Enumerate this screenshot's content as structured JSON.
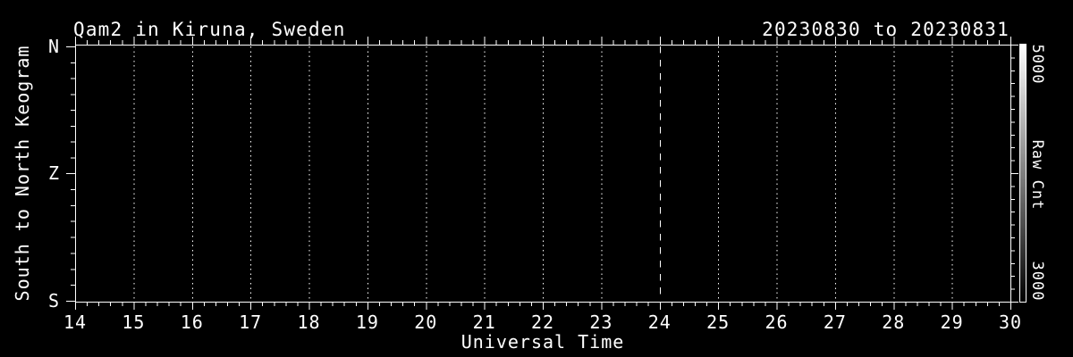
{
  "window": {
    "background_color": "#000000",
    "foreground_color": "#ffffff"
  },
  "chart_data": {
    "type": "heatmap",
    "title": "Qam2 in Kiruna, Sweden",
    "date_range": "20230830 to 20230831",
    "xlabel": "Universal Time",
    "ylabel": "South to North Keogram",
    "x_axis": {
      "min": 14,
      "max": 30,
      "tick_labels": [
        "14",
        "15",
        "16",
        "17",
        "18",
        "19",
        "20",
        "21",
        "22",
        "23",
        "24",
        "25",
        "26",
        "27",
        "28",
        "29",
        "30"
      ],
      "minor_divisions_per_hour": 5,
      "dotted_gridline_hours": [
        15,
        16,
        17,
        18,
        19,
        20,
        21,
        22,
        23,
        25,
        26,
        27,
        28,
        29
      ],
      "dashed_gridline_hour": 24
    },
    "y_axis": {
      "tick_labels": [
        "N",
        "Z",
        "S"
      ],
      "minor_divisions_per_interval": 8
    },
    "colorbar": {
      "label": "Raw Cnt",
      "top_tick_label": "5000",
      "bottom_tick_label": "3000",
      "top_color": "#ffffff",
      "bottom_color": "#000000",
      "minor_divisions": 20
    },
    "plot_area_content": "uniform black; no keogram counts visible between 14 and 30 UT",
    "grid": "vertical dotted gridlines each hour, dashed line at 24 UT",
    "legend_position": "colorbar right"
  }
}
